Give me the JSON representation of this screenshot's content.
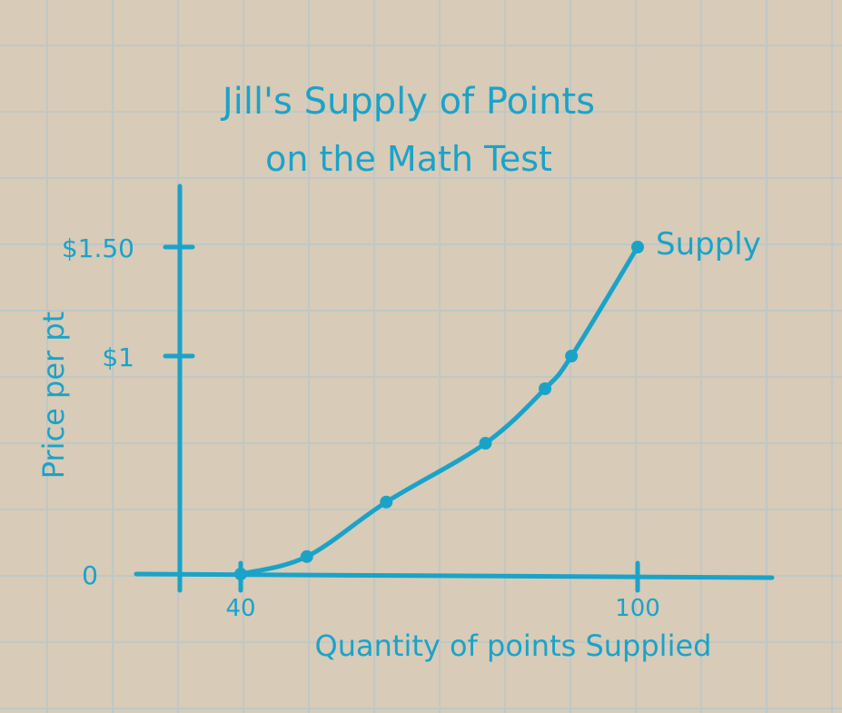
{
  "chart_data": {
    "type": "line",
    "title_line1": "Jill's Supply of Points",
    "title_line2": "on the Math Test",
    "xlabel": "Quantity of points Supplied",
    "ylabel": "Price per pt",
    "x_ticks": [
      {
        "value": 40,
        "label": "40"
      },
      {
        "value": 100,
        "label": "100"
      }
    ],
    "y_ticks": [
      {
        "value": 0,
        "label": "0"
      },
      {
        "value": 1,
        "label": "$1"
      },
      {
        "value": 1.5,
        "label": "$1.50"
      }
    ],
    "xlim": [
      30,
      120
    ],
    "ylim": [
      0,
      1.5
    ],
    "series": [
      {
        "name": "Supply",
        "x": [
          40,
          50,
          62,
          77,
          86,
          90,
          100
        ],
        "y": [
          0,
          0.08,
          0.33,
          0.6,
          0.85,
          1,
          1.5
        ]
      }
    ],
    "colors": {
      "ink": "#1aa3c9",
      "paper": "#d8cbb7",
      "grid": "#bfc8c6"
    }
  }
}
